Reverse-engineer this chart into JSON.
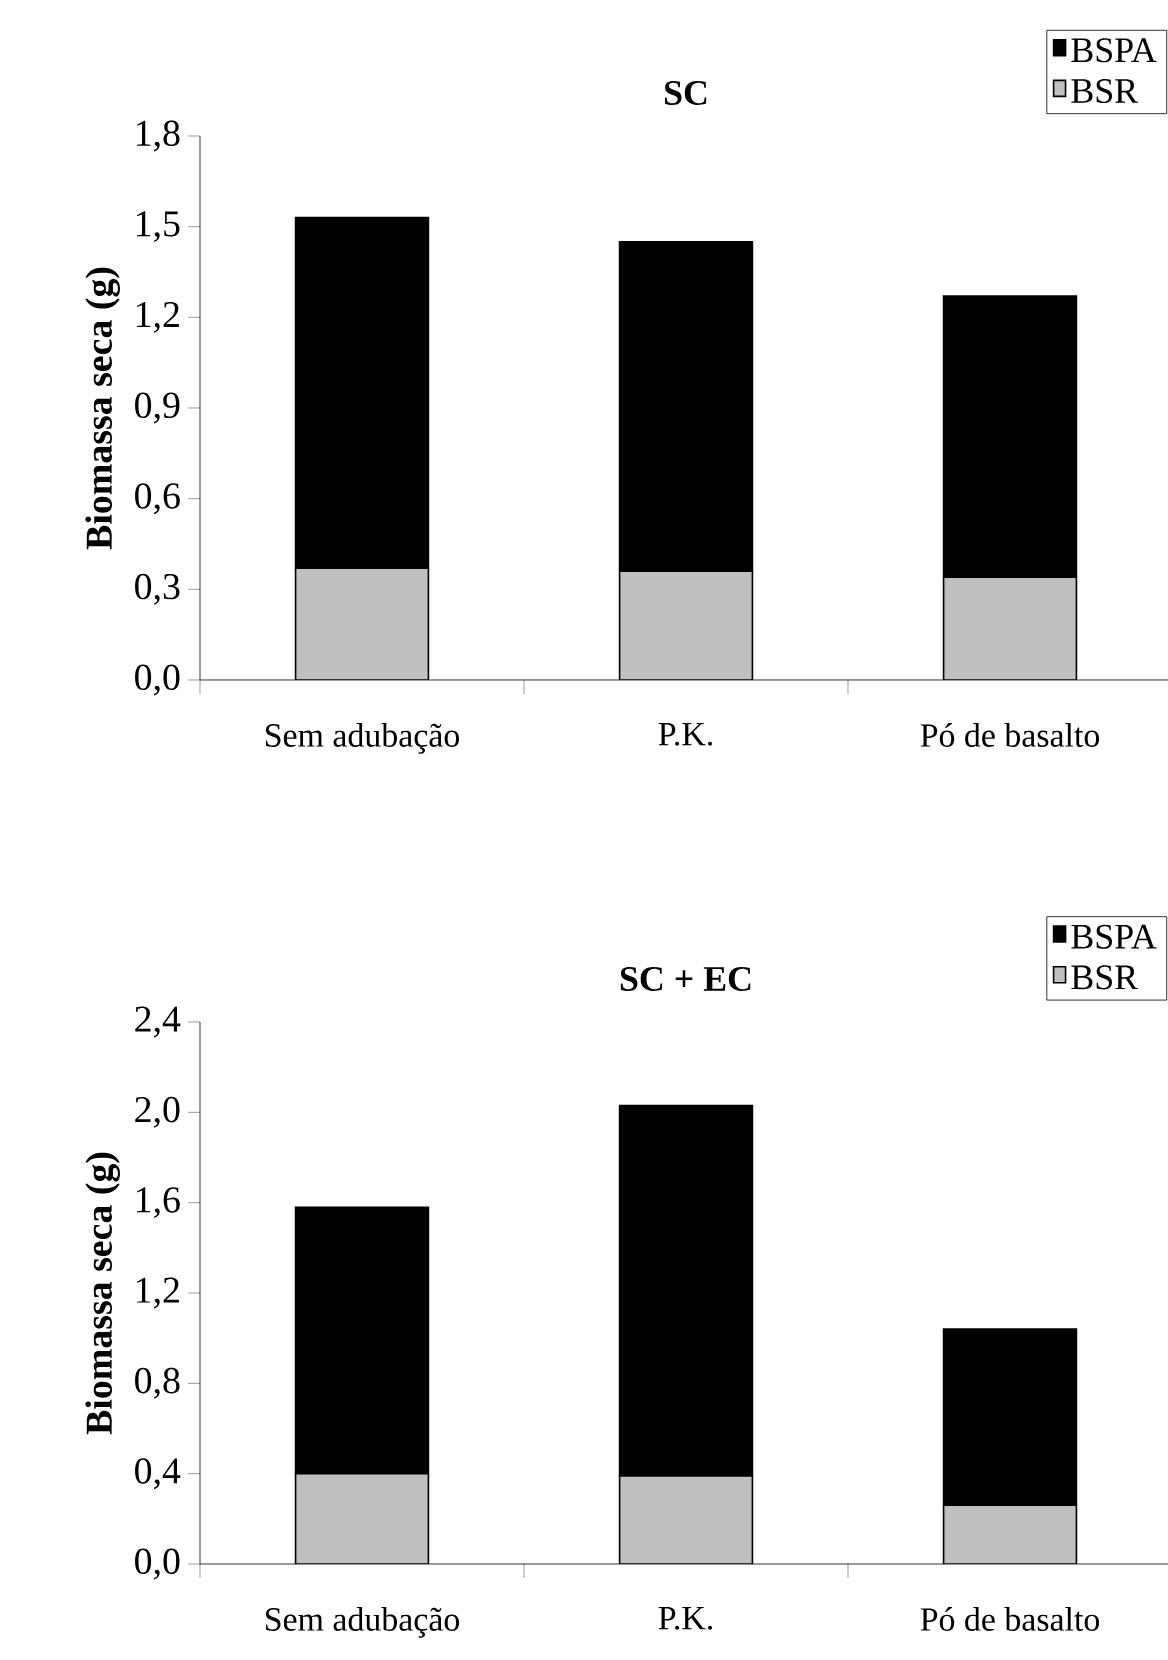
{
  "chart_data": [
    {
      "type": "bar",
      "title": "SC",
      "ylabel": "Biomassa seca (g)",
      "categories": [
        "Sem adubação",
        "P.K.",
        "Pó de basalto"
      ],
      "stacked": true,
      "legend": "top right",
      "series": [
        {
          "name": "BSR",
          "color": "#c0c0c0",
          "values": [
            0.37,
            0.36,
            0.34
          ]
        },
        {
          "name": "BSPA",
          "color": "#000000",
          "values": [
            1.16,
            1.09,
            0.93
          ]
        }
      ],
      "ylim": [
        0,
        1.8
      ],
      "yticks": [
        {
          "value": 0,
          "label": "0,0"
        },
        {
          "value": 0.3,
          "label": "0,3"
        },
        {
          "value": 0.6,
          "label": "0,6"
        },
        {
          "value": 0.9,
          "label": "0,9"
        },
        {
          "value": 1.2,
          "label": "1,2"
        },
        {
          "value": 1.5,
          "label": "1,5"
        },
        {
          "value": 1.8,
          "label": "1,8"
        }
      ]
    },
    {
      "type": "bar",
      "title": "SC + EC",
      "ylabel": "Biomassa seca (g)",
      "categories": [
        "Sem adubação",
        "P.K.",
        "Pó de basalto"
      ],
      "stacked": true,
      "legend": "top right",
      "series": [
        {
          "name": "BSR",
          "color": "#c0c0c0",
          "values": [
            0.4,
            0.39,
            0.26
          ]
        },
        {
          "name": "BSPA",
          "color": "#000000",
          "values": [
            1.18,
            1.64,
            0.78
          ]
        }
      ],
      "ylim": [
        0,
        2.4
      ],
      "yticks": [
        {
          "value": 0,
          "label": "0,0"
        },
        {
          "value": 0.4,
          "label": "0,4"
        },
        {
          "value": 0.8,
          "label": "0,8"
        },
        {
          "value": 1.2,
          "label": "1,2"
        },
        {
          "value": 1.6,
          "label": "1,6"
        },
        {
          "value": 2.0,
          "label": "2,0"
        },
        {
          "value": 2.4,
          "label": "2,4"
        }
      ]
    }
  ]
}
